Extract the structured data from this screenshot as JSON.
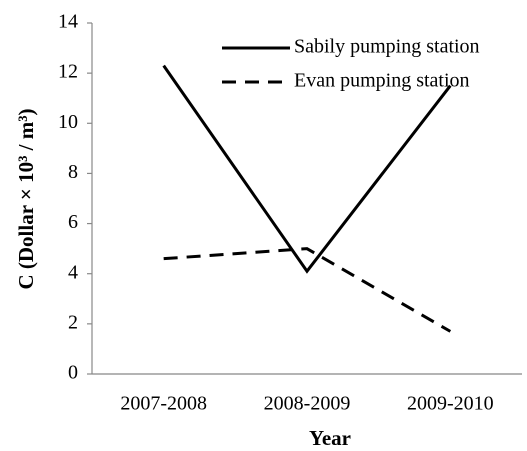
{
  "chart_data": {
    "type": "line",
    "x_label": "Year",
    "y_label": "C (Dollar × 10³ / m³)",
    "categories": [
      "2007-2008",
      "2008-2009",
      "2009-2010"
    ],
    "series": [
      {
        "name": "Sabily pumping station",
        "color": "#000000",
        "dash": "solid",
        "values": [
          12.3,
          4.1,
          11.5
        ]
      },
      {
        "name": "Evan pumping station",
        "color": "#000000",
        "dash": "dashed",
        "values": [
          4.6,
          5.0,
          1.7
        ]
      }
    ],
    "ylim": [
      0,
      14
    ],
    "yticks": [
      0,
      2,
      4,
      6,
      8,
      10,
      12,
      14
    ],
    "grid": false,
    "legend": "upper right"
  }
}
